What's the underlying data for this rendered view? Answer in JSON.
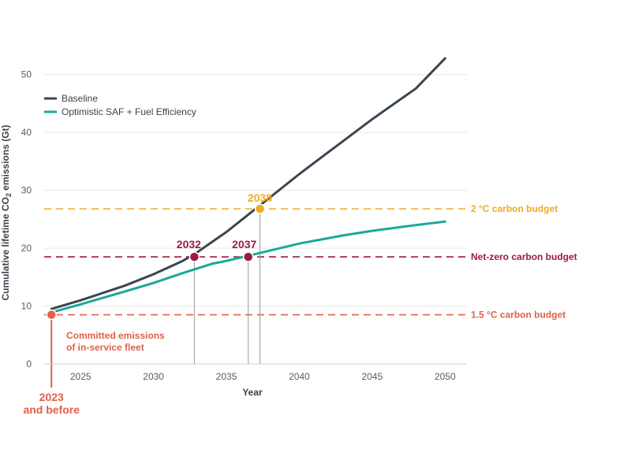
{
  "chart_data": {
    "type": "line",
    "xlabel": "Year",
    "ylabel": "Cumulative lifetime CO2 emissions (Gt)",
    "xlim": [
      2022.5,
      2051.5
    ],
    "ylim": [
      0,
      52
    ],
    "x_ticks": [
      2025,
      2030,
      2035,
      2040,
      2045,
      2050
    ],
    "y_ticks": [
      0,
      10,
      20,
      30,
      40,
      50
    ],
    "grid": "horizontal",
    "legend_position": "top-left",
    "series": [
      {
        "name": "Baseline",
        "color": "#3c4650",
        "x": [
          2023,
          2025,
          2028,
          2030,
          2032,
          2033,
          2035,
          2036,
          2037,
          2038,
          2040,
          2042,
          2045,
          2048,
          2050
        ],
        "y": [
          9.5,
          11.0,
          13.5,
          15.5,
          17.8,
          19.3,
          22.8,
          24.8,
          26.8,
          28.8,
          32.8,
          36.6,
          42.3,
          47.6,
          52.8
        ]
      },
      {
        "name": "Optimistic SAF + Fuel Efficiency",
        "color": "#1aa89a",
        "x": [
          2023,
          2025,
          2028,
          2030,
          2032,
          2033,
          2034,
          2035,
          2037,
          2040,
          2043,
          2045,
          2048,
          2050
        ],
        "y": [
          8.9,
          10.3,
          12.5,
          14.0,
          15.7,
          16.5,
          17.3,
          17.8,
          19.0,
          20.8,
          22.2,
          23.0,
          24.0,
          24.6
        ]
      }
    ],
    "budgets": [
      {
        "label": "2 °C carbon budget",
        "value": 26.8,
        "color": "#f0aa24"
      },
      {
        "label": "Net-zero carbon budget",
        "value": 18.5,
        "color": "#9c1b3e"
      },
      {
        "label": "1.5 °C  carbon budget",
        "value": 8.5,
        "color": "#e0604a"
      }
    ],
    "markers": [
      {
        "label": "2038",
        "x": 2037.3,
        "y": 26.8,
        "color": "#f0aa24"
      },
      {
        "label": "2032",
        "x": 2032.8,
        "y": 18.5,
        "color": "#9c1b3e"
      },
      {
        "label": "2037",
        "x": 2036.5,
        "y": 18.5,
        "color": "#9c1b3e"
      },
      {
        "label": "2023\nand before",
        "x": 2023,
        "y": 8.5,
        "color": "#e0604a"
      }
    ],
    "annotation": {
      "text": "Committed emissions\nof in-service fleet",
      "color": "#e0604a"
    }
  }
}
